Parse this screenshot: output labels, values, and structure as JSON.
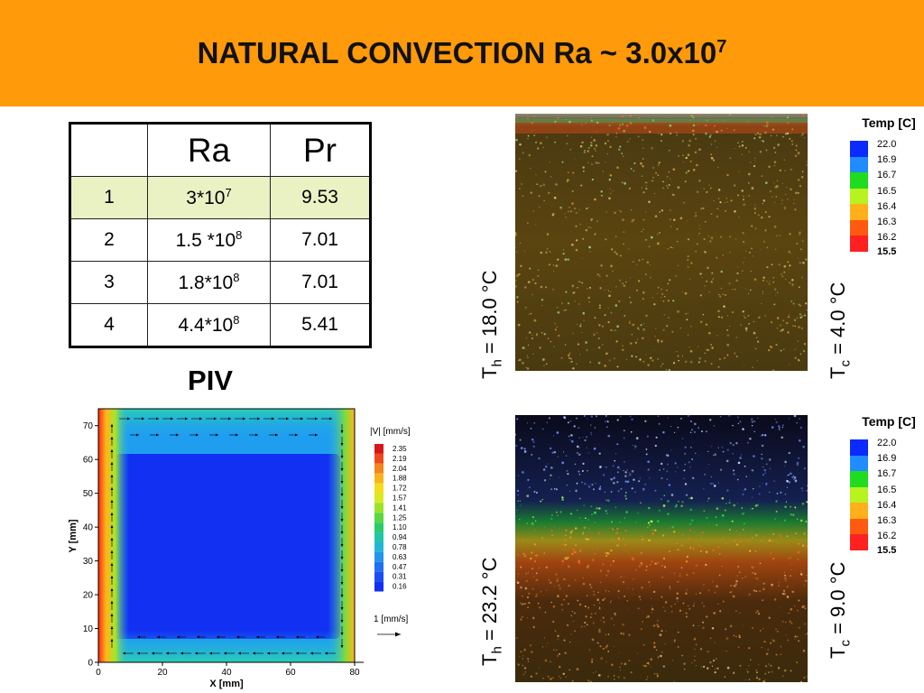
{
  "slide": {
    "title_text": "NATURAL CONVECTION  Ra ~ 3.0x10",
    "title_exp": "7",
    "piv_label": "PIV"
  },
  "table": {
    "header": [
      "",
      "Ra",
      "Pr"
    ],
    "rows": [
      {
        "id": "1",
        "ra_mant": "3*10",
        "ra_exp": "7",
        "pr": "9.53"
      },
      {
        "id": "2",
        "ra_mant": "1.5 *10",
        "ra_exp": "8",
        "pr": "7.01"
      },
      {
        "id": "3",
        "ra_mant": "1.8*10",
        "ra_exp": "8",
        "pr": "7.01"
      },
      {
        "id": "4",
        "ra_mant": "4.4*10",
        "ra_exp": "8",
        "pr": "5.41"
      }
    ]
  },
  "experiment_top": {
    "th_prefix": "T",
    "th_sub": "h",
    "th_value": " = 18.0 °C",
    "tc_prefix": "T",
    "tc_sub": "c",
    "tc_value": " = 4.0 °C",
    "legend_title": "Temp [C]",
    "legend_values": [
      "22.0",
      "16.9",
      "16.7",
      "16.5",
      "16.4",
      "16.3",
      "16.2",
      "15.5"
    ]
  },
  "experiment_bottom": {
    "th_prefix": "T",
    "th_sub": "h",
    "th_value": " = 23.2 °C",
    "tc_prefix": "T",
    "tc_sub": "c",
    "tc_value": " = 9.0 °C",
    "legend_title": "Temp [C]",
    "legend_values": [
      "22.0",
      "16.9",
      "16.7",
      "16.5",
      "16.4",
      "16.3",
      "16.2",
      "15.5"
    ]
  },
  "legend_colors": [
    "#0a2aff",
    "#1f8cff",
    "#1fdc1f",
    "#b8f21f",
    "#ffb01a",
    "#ff5a10",
    "#ff2020"
  ],
  "chart_data": {
    "type": "heatmap",
    "title": "",
    "xlabel": "X [mm]",
    "ylabel": "Y [mm]",
    "xlim": [
      0,
      80
    ],
    "ylim": [
      0,
      75
    ],
    "x_ticks": [
      0,
      20,
      40,
      60,
      80
    ],
    "y_ticks": [
      0,
      10,
      20,
      30,
      40,
      50,
      60,
      70
    ],
    "colorbar_title": "|V| [mm/s]",
    "colorbar_levels": [
      2.35,
      2.19,
      2.04,
      1.88,
      1.72,
      1.57,
      1.41,
      1.25,
      1.1,
      0.94,
      0.78,
      0.63,
      0.47,
      0.31,
      0.16
    ],
    "colorbar_colors": [
      "#d8161a",
      "#ec4a1a",
      "#f5861b",
      "#f9b41c",
      "#f5dc1e",
      "#d8ea22",
      "#9ee22c",
      "#5ad83c",
      "#29cc6a",
      "#1fc6a8",
      "#22b6d6",
      "#2494ec",
      "#2070f4",
      "#1a4ef6",
      "#1230f2"
    ],
    "reference_vector_label": "1 [mm/s]"
  }
}
